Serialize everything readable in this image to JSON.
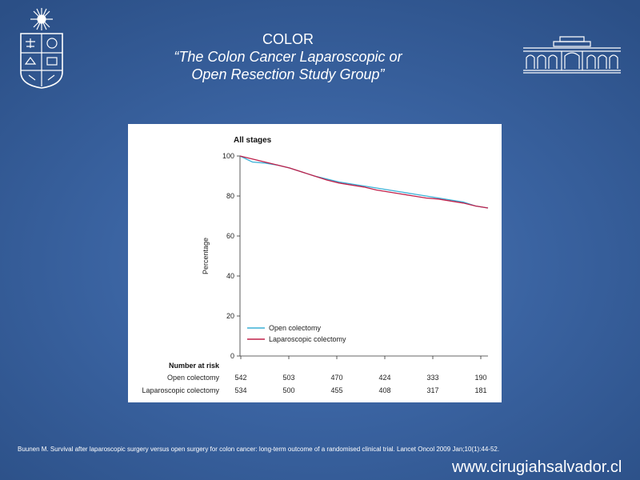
{
  "header": {
    "title": "COLOR",
    "subtitle_line1": "“The Colon Cancer Laparoscopic or",
    "subtitle_line2": "Open Resection Study Group”"
  },
  "logos": {
    "left": "university-seal",
    "right": "building-facade"
  },
  "chart_data": {
    "type": "line",
    "title": "All stages",
    "ylabel": "Percentage",
    "xlabel": "",
    "ylim": [
      0,
      100
    ],
    "yticks": [
      0,
      20,
      40,
      60,
      80,
      100
    ],
    "x": [
      0,
      1,
      2,
      3,
      4,
      5,
      6,
      7,
      8,
      9,
      10,
      11,
      12,
      13,
      14,
      15,
      16,
      17,
      18,
      19,
      20
    ],
    "xlim": [
      0,
      20
    ],
    "grid": false,
    "legend_position": "bottom-left",
    "series": [
      {
        "name": "Open colectomy",
        "color": "#3bb0d6",
        "values": [
          100,
          97,
          96.5,
          95.5,
          94,
          92,
          90,
          88.5,
          87,
          86,
          85,
          84,
          83,
          82,
          81,
          80,
          79,
          78,
          77,
          75,
          74
        ]
      },
      {
        "name": "Laparoscopic colectomy",
        "color": "#c0204a",
        "values": [
          100,
          98.5,
          97,
          95.5,
          94,
          92,
          90,
          88,
          86.5,
          85.5,
          84.5,
          83,
          82,
          81,
          80,
          79,
          78.5,
          77.5,
          76.5,
          75,
          74
        ]
      }
    ],
    "risk_table": {
      "heading": "Number at risk",
      "rows": [
        {
          "label": "Open colectomy",
          "values": [
            "542",
            "503",
            "470",
            "424",
            "333",
            "190"
          ]
        },
        {
          "label": "Laparoscopic colectomy",
          "values": [
            "534",
            "500",
            "455",
            "408",
            "317",
            "181"
          ]
        }
      ]
    }
  },
  "footer": {
    "citation": "Buunen M. Survival after laparoscopic surgery  versus open surgery  for colon cancer: long-term outcome of a randomised clinical trial. Lancet Oncol  2009 Jan;10(1):44-52.",
    "url": "www.cirugiahsalvador.cl"
  }
}
